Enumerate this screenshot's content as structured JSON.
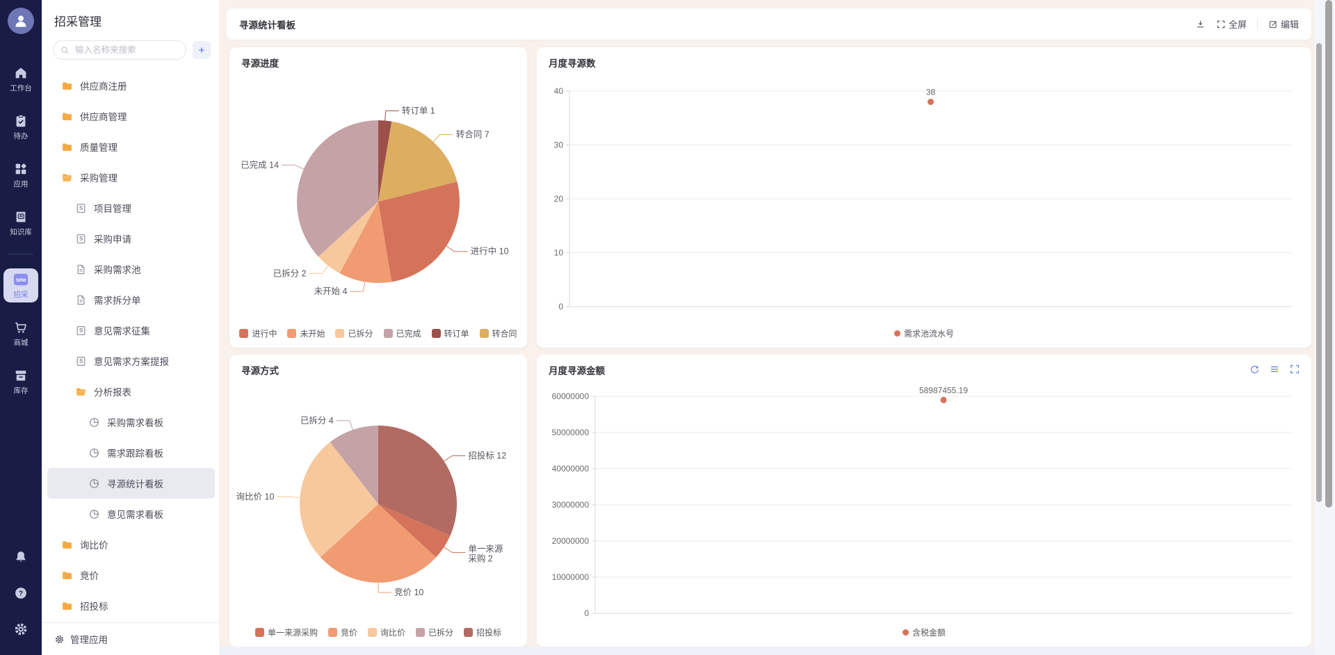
{
  "theme": {
    "rail_bg": "#191d45",
    "accent_blue": "#6b7ce8",
    "folder_orange": "#f7a83f",
    "point_color": "#d4735a",
    "active_rail_bg": "#d6d9f0"
  },
  "rail": {
    "srm_badge": "SRM",
    "ai_badge": "AI",
    "items": [
      {
        "id": "workbench",
        "label": "工作台",
        "icon": "home-icon",
        "active": false
      },
      {
        "id": "todo",
        "label": "待办",
        "icon": "clipboard-icon",
        "active": false
      },
      {
        "id": "apps",
        "label": "应用",
        "icon": "grid-icon",
        "active": false
      },
      {
        "id": "knowledge",
        "label": "知识库",
        "icon": "ai-book-icon",
        "active": false
      },
      {
        "id": "srm",
        "label": "招采",
        "icon": "srm-badge-icon",
        "active": true
      },
      {
        "id": "mall",
        "label": "商城",
        "icon": "cart-icon",
        "active": false
      },
      {
        "id": "inventory",
        "label": "库存",
        "icon": "inbox-icon",
        "active": false
      }
    ],
    "bottom_icons": [
      "bell-icon",
      "help-icon",
      "settings-icon"
    ]
  },
  "sidebar": {
    "title": "招采管理",
    "search_placeholder": "输入名称来搜索",
    "footer": "管理应用",
    "tree": [
      {
        "label": "供应商注册",
        "icon": "folder-icon",
        "level": 0,
        "active": false
      },
      {
        "label": "供应商管理",
        "icon": "folder-icon",
        "level": 0,
        "active": false
      },
      {
        "label": "质量管理",
        "icon": "folder-icon",
        "level": 0,
        "active": false
      },
      {
        "label": "采购管理",
        "icon": "folder-open-icon",
        "level": 0,
        "active": false
      },
      {
        "label": "项目管理",
        "icon": "form-icon",
        "level": 1,
        "active": false
      },
      {
        "label": "采购申请",
        "icon": "form-icon",
        "level": 1,
        "active": false
      },
      {
        "label": "采购需求池",
        "icon": "doc-icon",
        "level": 1,
        "active": false
      },
      {
        "label": "需求拆分单",
        "icon": "doc-icon",
        "level": 1,
        "active": false
      },
      {
        "label": "意见需求征集",
        "icon": "form-icon",
        "level": 1,
        "active": false
      },
      {
        "label": "意见需求方案提报",
        "icon": "form-icon",
        "level": 1,
        "active": false
      },
      {
        "label": "分析报表",
        "icon": "folder-open-icon",
        "level": 1,
        "active": false
      },
      {
        "label": "采购需求看板",
        "icon": "pie-icon",
        "level": 2,
        "active": false
      },
      {
        "label": "需求跟踪看板",
        "icon": "pie-icon",
        "level": 2,
        "active": false
      },
      {
        "label": "寻源统计看板",
        "icon": "pie-icon",
        "level": 2,
        "active": true
      },
      {
        "label": "意见需求看板",
        "icon": "pie-icon",
        "level": 2,
        "active": false
      },
      {
        "label": "询比价",
        "icon": "folder-icon",
        "level": 0,
        "active": false
      },
      {
        "label": "竞价",
        "icon": "folder-icon",
        "level": 0,
        "active": false
      },
      {
        "label": "招投标",
        "icon": "folder-icon",
        "level": 0,
        "active": false
      }
    ]
  },
  "header": {
    "title": "寻源统计看板",
    "fullscreen": "全屏",
    "edit": "编辑"
  },
  "chart_data": [
    {
      "type": "pie",
      "title": "寻源进度",
      "total": 38,
      "slices": [
        {
          "name": "转订单",
          "value": 1,
          "color": "#9d4f4a"
        },
        {
          "name": "转合同",
          "value": 7,
          "color": "#ddae60"
        },
        {
          "name": "进行中",
          "value": 10,
          "color": "#d4735a"
        },
        {
          "name": "未开始",
          "value": 4,
          "color": "#f09b72"
        },
        {
          "name": "已拆分",
          "value": 2,
          "color": "#f8c89d"
        },
        {
          "name": "已完成",
          "value": 14,
          "color": "#c5a2a6"
        }
      ],
      "legend": [
        "进行中",
        "未开始",
        "已拆分",
        "已完成",
        "转订单",
        "转合同"
      ],
      "legend_position": "bottom"
    },
    {
      "type": "scatter",
      "title": "月度寻源数",
      "ylim": [
        0,
        40
      ],
      "yticks": [
        0,
        10,
        20,
        30,
        40
      ],
      "grid": true,
      "series": [
        {
          "name": "需求池流水号",
          "color": "#d4735a",
          "points": [
            {
              "y": 38,
              "label": "38"
            }
          ]
        }
      ],
      "legend_position": "bottom"
    },
    {
      "type": "pie",
      "title": "寻源方式",
      "total": 38,
      "slices": [
        {
          "name": "招投标",
          "value": 12,
          "color": "#b26b63"
        },
        {
          "name": "单一来源采购",
          "value": 2,
          "color": "#d4735a",
          "label_lines": [
            "单一来源",
            "采购 2"
          ]
        },
        {
          "name": "竞价",
          "value": 10,
          "color": "#f09b72"
        },
        {
          "name": "询比价",
          "value": 10,
          "color": "#f8c89d"
        },
        {
          "name": "已拆分",
          "value": 4,
          "color": "#c5a2a6"
        }
      ],
      "legend": [
        "单一来源采购",
        "竞价",
        "询比价",
        "已拆分",
        "招投标"
      ],
      "legend_position": "bottom"
    },
    {
      "type": "scatter",
      "title": "月度寻源金额",
      "ylim": [
        0,
        60000000
      ],
      "yticks": [
        0,
        10000000,
        20000000,
        30000000,
        40000000,
        50000000,
        60000000
      ],
      "grid": true,
      "series": [
        {
          "name": "含税金额",
          "color": "#d4735a",
          "points": [
            {
              "y": 58987455.19,
              "label": "58987455.19"
            }
          ]
        }
      ],
      "toolbar": [
        "refresh-icon",
        "list-icon",
        "expand-icon"
      ],
      "legend_position": "bottom"
    }
  ]
}
